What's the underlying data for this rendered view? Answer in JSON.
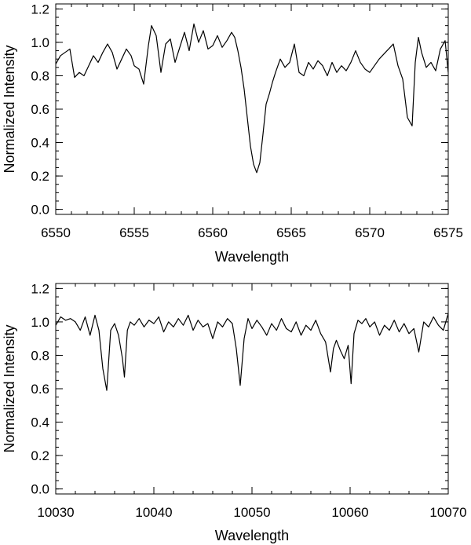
{
  "chart_data": [
    {
      "type": "line",
      "xlabel": "Wavelength",
      "ylabel": "Normalized Intensity",
      "xlim": [
        6550,
        6575
      ],
      "ylim": [
        -0.03,
        1.23
      ],
      "xticks": [
        6550,
        6555,
        6560,
        6565,
        6570,
        6575
      ],
      "xtick_labels": [
        "6550",
        "6555",
        "6560",
        "6565",
        "6570",
        "6575"
      ],
      "yticks": [
        0.0,
        0.2,
        0.4,
        0.6,
        0.8,
        1.0,
        1.2
      ],
      "ytick_labels": [
        "0.0",
        "0.2",
        "0.4",
        "0.6",
        "0.8",
        "1.0",
        "1.2"
      ],
      "grid": false,
      "series": [
        {
          "x": [
            6550.0,
            6550.3,
            6550.6,
            6550.9,
            6551.2,
            6551.5,
            6551.8,
            6552.1,
            6552.4,
            6552.7,
            6553.0,
            6553.3,
            6553.6,
            6553.9,
            6554.2,
            6554.5,
            6554.8,
            6555.0,
            6555.3,
            6555.6,
            6555.9,
            6556.1,
            6556.4,
            6556.7,
            6557.0,
            6557.3,
            6557.6,
            6557.9,
            6558.2,
            6558.5,
            6558.8,
            6559.1,
            6559.4,
            6559.7,
            6560.0,
            6560.3,
            6560.6,
            6560.9,
            6561.2,
            6561.4,
            6561.6,
            6561.8,
            6562.0,
            6562.2,
            6562.4,
            6562.6,
            6562.8,
            6563.0,
            6563.2,
            6563.4,
            6563.6,
            6563.8,
            6564.0,
            6564.3,
            6564.6,
            6564.9,
            6565.2,
            6565.5,
            6565.8,
            6566.1,
            6566.4,
            6566.7,
            6567.0,
            6567.3,
            6567.6,
            6567.9,
            6568.2,
            6568.5,
            6568.8,
            6569.1,
            6569.4,
            6569.7,
            6570.0,
            6570.3,
            6570.6,
            6570.9,
            6571.2,
            6571.5,
            6571.8,
            6572.1,
            6572.4,
            6572.7,
            6572.9,
            6573.1,
            6573.3,
            6573.6,
            6573.9,
            6574.2,
            6574.5,
            6574.8,
            6575.0
          ],
          "y": [
            0.87,
            0.92,
            0.94,
            0.96,
            0.79,
            0.82,
            0.8,
            0.86,
            0.92,
            0.88,
            0.94,
            0.99,
            0.94,
            0.84,
            0.9,
            0.96,
            0.92,
            0.86,
            0.84,
            0.75,
            0.98,
            1.1,
            1.04,
            0.82,
            0.99,
            1.02,
            0.88,
            0.97,
            1.06,
            0.95,
            1.11,
            1.0,
            1.07,
            0.96,
            0.98,
            1.04,
            0.97,
            1.01,
            1.06,
            1.03,
            0.95,
            0.85,
            0.72,
            0.55,
            0.38,
            0.27,
            0.22,
            0.28,
            0.45,
            0.63,
            0.69,
            0.76,
            0.82,
            0.9,
            0.85,
            0.88,
            0.99,
            0.82,
            0.8,
            0.88,
            0.84,
            0.89,
            0.86,
            0.8,
            0.88,
            0.82,
            0.86,
            0.83,
            0.88,
            0.95,
            0.88,
            0.84,
            0.82,
            0.86,
            0.9,
            0.93,
            0.96,
            0.99,
            0.86,
            0.78,
            0.55,
            0.5,
            0.88,
            1.03,
            0.94,
            0.85,
            0.88,
            0.83,
            0.96,
            1.01,
            0.82
          ]
        }
      ]
    },
    {
      "type": "line",
      "xlabel": "Wavelength",
      "ylabel": "Normalized Intensity",
      "xlim": [
        10030,
        10070
      ],
      "ylim": [
        -0.03,
        1.23
      ],
      "xticks": [
        10030,
        10040,
        10050,
        10060,
        10070
      ],
      "xtick_labels": [
        "10030",
        "10040",
        "10050",
        "10060",
        "10070"
      ],
      "yticks": [
        0.0,
        0.2,
        0.4,
        0.6,
        0.8,
        1.0,
        1.2
      ],
      "ytick_labels": [
        "0.0",
        "0.2",
        "0.4",
        "0.6",
        "0.8",
        "1.0",
        "1.2"
      ],
      "grid": false,
      "series": [
        {
          "x": [
            10030.0,
            10030.5,
            10031.0,
            10031.5,
            10032.0,
            10032.5,
            10033.0,
            10033.5,
            10034.0,
            10034.4,
            10034.8,
            10035.2,
            10035.6,
            10036.0,
            10036.4,
            10036.8,
            10037.0,
            10037.3,
            10037.6,
            10038.0,
            10038.5,
            10039.0,
            10039.5,
            10040.0,
            10040.5,
            10041.0,
            10041.5,
            10042.0,
            10042.5,
            10043.0,
            10043.5,
            10044.0,
            10044.5,
            10045.0,
            10045.5,
            10046.0,
            10046.5,
            10047.0,
            10047.5,
            10048.0,
            10048.4,
            10048.8,
            10049.2,
            10049.6,
            10050.0,
            10050.5,
            10051.0,
            10051.5,
            10052.0,
            10052.5,
            10053.0,
            10053.5,
            10054.0,
            10054.5,
            10055.0,
            10055.5,
            10056.0,
            10056.5,
            10057.0,
            10057.5,
            10058.0,
            10058.3,
            10058.6,
            10059.0,
            10059.4,
            10059.8,
            10060.1,
            10060.4,
            10060.8,
            10061.2,
            10061.6,
            10062.0,
            10062.5,
            10063.0,
            10063.5,
            10064.0,
            10064.5,
            10065.0,
            10065.5,
            10066.0,
            10066.5,
            10067.0,
            10067.5,
            10068.0,
            10068.5,
            10069.0,
            10069.5,
            10070.0
          ],
          "y": [
            0.98,
            1.03,
            1.01,
            1.02,
            1.0,
            0.95,
            1.03,
            0.92,
            1.04,
            0.95,
            0.72,
            0.59,
            0.95,
            0.99,
            0.92,
            0.78,
            0.67,
            0.95,
            1.0,
            0.98,
            1.02,
            0.97,
            1.01,
            0.99,
            1.03,
            0.94,
            1.0,
            0.97,
            1.02,
            0.98,
            1.04,
            0.95,
            1.01,
            0.97,
            0.99,
            0.9,
            1.0,
            0.97,
            1.02,
            0.99,
            0.84,
            0.62,
            0.9,
            1.02,
            0.96,
            1.01,
            0.97,
            0.92,
            0.99,
            0.95,
            1.02,
            0.96,
            0.94,
            1.0,
            0.92,
            0.98,
            0.95,
            1.01,
            0.93,
            0.88,
            0.7,
            0.84,
            0.89,
            0.83,
            0.78,
            0.86,
            0.63,
            0.93,
            1.01,
            0.99,
            1.02,
            0.97,
            1.0,
            0.92,
            0.98,
            0.95,
            1.01,
            0.94,
            0.99,
            0.93,
            0.96,
            0.82,
            1.0,
            0.97,
            1.03,
            0.98,
            0.95,
            1.05
          ]
        }
      ]
    }
  ]
}
